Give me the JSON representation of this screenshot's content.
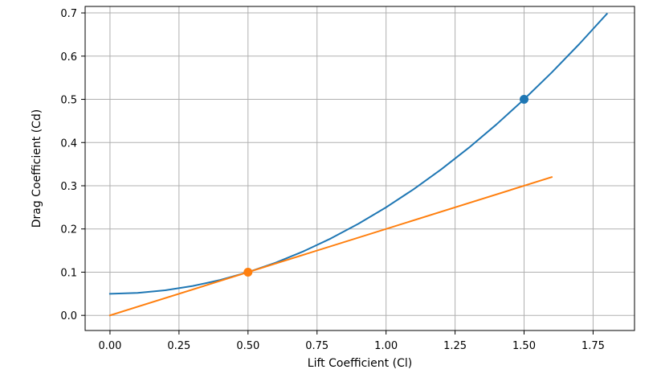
{
  "chart_data": {
    "type": "line",
    "xlabel": "Lift Coefficient (Cl)",
    "ylabel": "Drag Coefficient (Cd)",
    "xlim": [
      -0.09,
      1.9
    ],
    "ylim": [
      -0.035,
      0.715
    ],
    "xticks": [
      "0.00",
      "0.25",
      "0.50",
      "0.75",
      "1.00",
      "1.25",
      "1.50",
      "1.75"
    ],
    "yticks": [
      "0.0",
      "0.1",
      "0.2",
      "0.3",
      "0.4",
      "0.5",
      "0.6",
      "0.7"
    ],
    "grid": true,
    "series": [
      {
        "color": "#1f77b4",
        "points": [
          [
            0.0,
            0.05
          ],
          [
            0.1,
            0.052
          ],
          [
            0.2,
            0.058
          ],
          [
            0.3,
            0.068
          ],
          [
            0.4,
            0.082
          ],
          [
            0.5,
            0.1
          ],
          [
            0.6,
            0.122
          ],
          [
            0.7,
            0.148
          ],
          [
            0.8,
            0.178
          ],
          [
            0.9,
            0.212
          ],
          [
            1.0,
            0.25
          ],
          [
            1.1,
            0.292
          ],
          [
            1.2,
            0.338
          ],
          [
            1.3,
            0.388
          ],
          [
            1.4,
            0.442
          ],
          [
            1.5,
            0.5
          ],
          [
            1.6,
            0.562
          ],
          [
            1.7,
            0.628
          ],
          [
            1.8,
            0.698
          ]
        ]
      },
      {
        "color": "#ff7f0e",
        "points": [
          [
            0.0,
            0.0
          ],
          [
            1.6,
            0.32
          ]
        ]
      }
    ],
    "markers": [
      {
        "x": 0.5,
        "y": 0.1,
        "color": "#ff7f0e"
      },
      {
        "x": 1.5,
        "y": 0.5,
        "color": "#1f77b4"
      }
    ]
  }
}
